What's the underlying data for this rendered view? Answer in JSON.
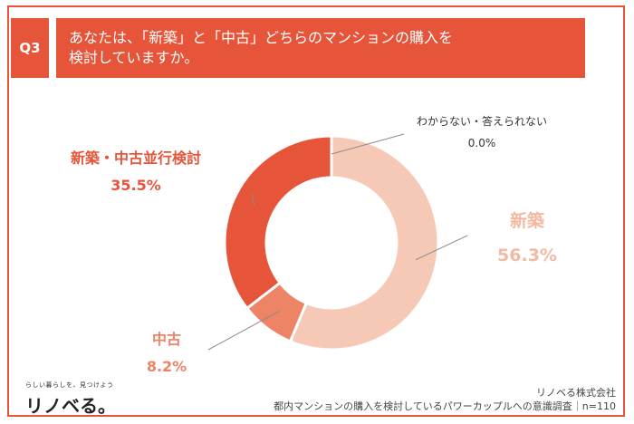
{
  "header": {
    "question_label": "Q3",
    "title_line1": "あなたは、「新築」と「中古」どちらのマンションの購入を",
    "title_line2": "検討していますか。"
  },
  "chart_data": {
    "type": "pie",
    "categories": [
      "新築",
      "中古",
      "新築・中古並行検討",
      "わからない・答えられない"
    ],
    "values": [
      56.3,
      8.2,
      35.5,
      0.0
    ],
    "value_labels": [
      "56.3%",
      "8.2%",
      "35.5%",
      "0.0%"
    ],
    "colors": [
      "#f6c8b6",
      "#ec8465",
      "#e6553a",
      "#999999"
    ],
    "label_colors": [
      "#f3b9a3",
      "#ec8465",
      "#e6553a",
      "#333333"
    ]
  },
  "brand": {
    "tagline": "らしい暮らしを、見つけよう",
    "logo": "リノベる。"
  },
  "footer": {
    "company": "リノベる株式会社",
    "survey": "都内マンションの購入を検討しているパワーカップルへの意識調査｜n=110"
  },
  "colors": {
    "accent": "#e6553a"
  }
}
